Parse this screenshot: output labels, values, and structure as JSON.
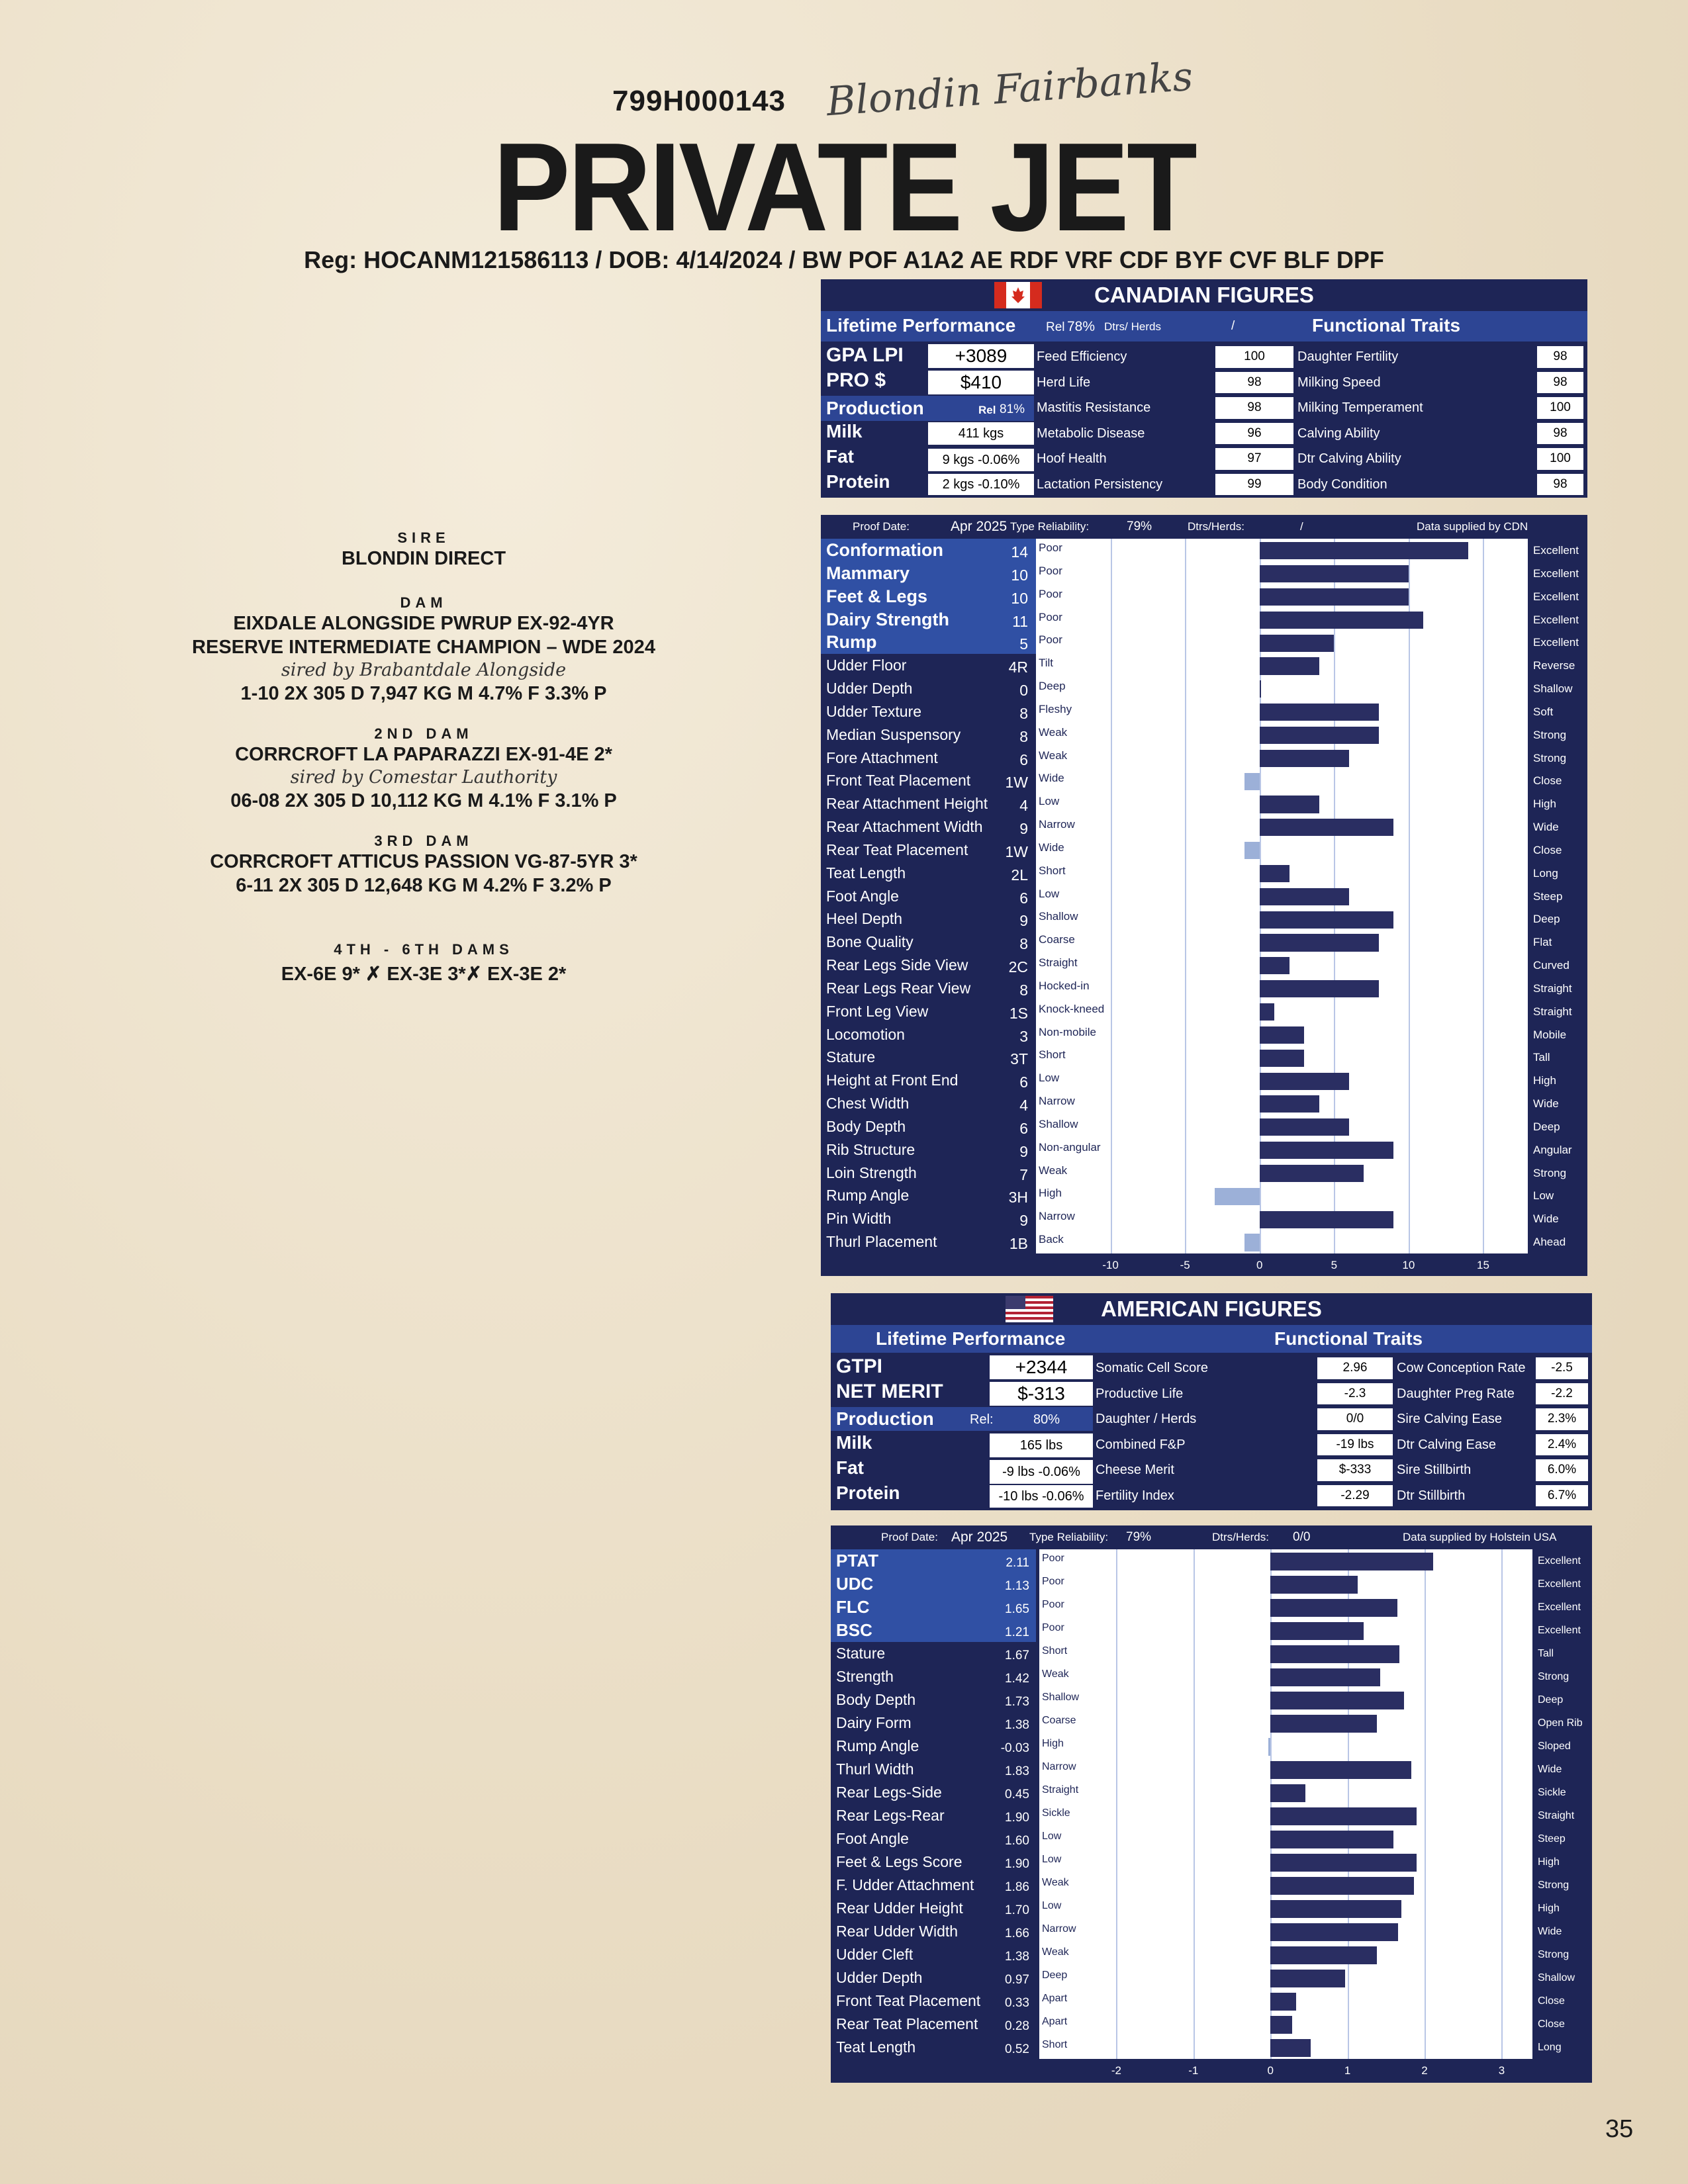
{
  "header": {
    "id": "799H000143",
    "signature": "Blondin Fairbanks",
    "title": "PRIVATE JET",
    "reg": "Reg: HOCANM121586113 /  DOB: 4/14/2024  / BW POF A1A2 AE RDF VRF CDF BYF CVF BLF DPF"
  },
  "pedigree": {
    "sire_label": "SIRE",
    "sire": "BLONDIN DIRECT",
    "dam_label": "DAM",
    "dam": "EIXDALE ALONGSIDE PWRUP EX-92-4YR",
    "dam_award": "RESERVE INTERMEDIATE CHAMPION – WDE 2024",
    "dam_sired": "sired by Brabantdale Alongside",
    "dam_record": "1-10 2X 305 D 7,947 KG M 4.7% F 3.3% P",
    "dam2_label": "2ND DAM",
    "dam2": "CORRCROFT LA PAPARAZZI EX-91-4E 2*",
    "dam2_sired": "sired by Comestar Lauthority",
    "dam2_record": "06-08 2X 305 D 10,112 KG M 4.1% F 3.1% P",
    "dam3_label": "3RD DAM",
    "dam3": "CORRCROFT ATTICUS PASSION VG-87-5YR 3*",
    "dam3_record": "6-11 2X 305 D 12,648 KG M 4.2% F 3.2% P",
    "dams46_label": "4TH - 6TH DAMS",
    "dams46": "EX-6E 9* ✗ EX-3E 3*✗ EX-3E 2*"
  },
  "canadian": {
    "title": "CANADIAN FIGURES",
    "lifetime": "Lifetime Performance",
    "rel_label": "Rel",
    "rel": "78%",
    "dtrs_label": "Dtrs/ Herds",
    "dtrs_sep": "/",
    "functional": "Functional Traits",
    "gpa_label": "GPA LPI",
    "gpa": "+3089",
    "pro_label": "PRO  $",
    "pro": "$410",
    "production": "Production",
    "prod_rel_label": "Rel",
    "prod_rel": "81%",
    "milk_label": "Milk",
    "milk": "411 kgs",
    "fat_label": "Fat",
    "fat": "9 kgs -0.06%",
    "protein_label": "Protein",
    "protein": "2 kgs -0.10%",
    "func_mid": [
      [
        "Feed Efficiency",
        "100"
      ],
      [
        "Herd Life",
        "98"
      ],
      [
        "Mastitis Resistance",
        "98"
      ],
      [
        "Metabolic Disease",
        "96"
      ],
      [
        "Hoof Health",
        "97"
      ],
      [
        "Lactation Persistency",
        "99"
      ]
    ],
    "func_right": [
      [
        "Daughter Fertility",
        "98"
      ],
      [
        "Milking Speed",
        "98"
      ],
      [
        "Milking Temperament",
        "100"
      ],
      [
        "Calving Ability",
        "98"
      ],
      [
        "Dtr Calving Ability",
        "100"
      ],
      [
        "Body Condition",
        "98"
      ]
    ],
    "proof_label": "Proof Date:",
    "proof_date": "Apr 2025",
    "type_rel_label": "Type Reliability:",
    "type_rel": "79%",
    "dtrs_herds_label": "Dtrs/Herds:",
    "dtrs_herds": "/",
    "supplied": "Data supplied by CDN",
    "axis": [
      "-10",
      "-5",
      "0",
      "5",
      "10",
      "15"
    ]
  },
  "canadian_type": {
    "xlim": [
      -15,
      18
    ],
    "traits": [
      {
        "name": "Conformation",
        "shown": "14",
        "v": 14,
        "lo": "Poor",
        "hi": "Excellent",
        "major": true
      },
      {
        "name": "Mammary",
        "shown": "10",
        "v": 10,
        "lo": "Poor",
        "hi": "Excellent",
        "major": true
      },
      {
        "name": "Feet & Legs",
        "shown": "10",
        "v": 10,
        "lo": "Poor",
        "hi": "Excellent",
        "major": true
      },
      {
        "name": "Dairy Strength",
        "shown": "11",
        "v": 11,
        "lo": "Poor",
        "hi": "Excellent",
        "major": true
      },
      {
        "name": "Rump",
        "shown": "5",
        "v": 5,
        "lo": "Poor",
        "hi": "Excellent",
        "major": true
      },
      {
        "name": "Udder Floor",
        "shown": "4R",
        "v": 4,
        "lo": "Tilt",
        "hi": "Reverse"
      },
      {
        "name": "Udder Depth",
        "shown": "0",
        "v": 0,
        "lo": "Deep",
        "hi": "Shallow"
      },
      {
        "name": "Udder Texture",
        "shown": "8",
        "v": 8,
        "lo": "Fleshy",
        "hi": "Soft"
      },
      {
        "name": "Median Suspensory",
        "shown": "8",
        "v": 8,
        "lo": "Weak",
        "hi": "Strong"
      },
      {
        "name": "Fore Attachment",
        "shown": "6",
        "v": 6,
        "lo": "Weak",
        "hi": "Strong"
      },
      {
        "name": "Front Teat Placement",
        "shown": "1W",
        "v": -1,
        "lo": "Wide",
        "hi": "Close"
      },
      {
        "name": "Rear Attachment Height",
        "shown": "4",
        "v": 4,
        "lo": "Low",
        "hi": "High"
      },
      {
        "name": "Rear Attachment Width",
        "shown": "9",
        "v": 9,
        "lo": "Narrow",
        "hi": "Wide"
      },
      {
        "name": "Rear Teat Placement",
        "shown": "1W",
        "v": -1,
        "lo": "Wide",
        "hi": "Close"
      },
      {
        "name": "Teat Length",
        "shown": "2L",
        "v": 2,
        "lo": "Short",
        "hi": "Long"
      },
      {
        "name": "Foot Angle",
        "shown": "6",
        "v": 6,
        "lo": "Low",
        "hi": "Steep"
      },
      {
        "name": "Heel Depth",
        "shown": "9",
        "v": 9,
        "lo": "Shallow",
        "hi": "Deep"
      },
      {
        "name": "Bone Quality",
        "shown": "8",
        "v": 8,
        "lo": "Coarse",
        "hi": "Flat"
      },
      {
        "name": "Rear Legs Side View",
        "shown": "2C",
        "v": 2,
        "lo": "Straight",
        "hi": "Curved"
      },
      {
        "name": "Rear Legs Rear View",
        "shown": "8",
        "v": 8,
        "lo": "Hocked-in",
        "hi": "Straight"
      },
      {
        "name": "Front Leg View",
        "shown": "1S",
        "v": 1,
        "lo": "Knock-kneed",
        "hi": "Straight"
      },
      {
        "name": "Locomotion",
        "shown": "3",
        "v": 3,
        "lo": "Non-mobile",
        "hi": "Mobile"
      },
      {
        "name": "Stature",
        "shown": "3T",
        "v": 3,
        "lo": "Short",
        "hi": "Tall"
      },
      {
        "name": "Height at Front End",
        "shown": "6",
        "v": 6,
        "lo": "Low",
        "hi": "High"
      },
      {
        "name": "Chest Width",
        "shown": "4",
        "v": 4,
        "lo": "Narrow",
        "hi": "Wide"
      },
      {
        "name": "Body Depth",
        "shown": "6",
        "v": 6,
        "lo": "Shallow",
        "hi": "Deep"
      },
      {
        "name": "Rib Structure",
        "shown": "9",
        "v": 9,
        "lo": "Non-angular",
        "hi": "Angular"
      },
      {
        "name": "Loin Strength",
        "shown": "7",
        "v": 7,
        "lo": "Weak",
        "hi": "Strong"
      },
      {
        "name": "Rump Angle",
        "shown": "3H",
        "v": -3,
        "lo": "High",
        "hi": "Low"
      },
      {
        "name": "Pin Width",
        "shown": "9",
        "v": 9,
        "lo": "Narrow",
        "hi": "Wide"
      },
      {
        "name": "Thurl Placement",
        "shown": "1B",
        "v": -1,
        "lo": "Back",
        "hi": "Ahead"
      }
    ]
  },
  "american": {
    "title": "AMERICAN FIGURES",
    "lifetime": "Lifetime Performance",
    "functional": "Functional Traits",
    "gtpi_label": "GTPI",
    "gtpi": "+2344",
    "nm_label": "NET MERIT",
    "nm": "$-313",
    "production": "Production",
    "rel_label": "Rel:",
    "rel": "80%",
    "milk_label": "Milk",
    "milk": "165 lbs",
    "fat_label": "Fat",
    "fat": "-9 lbs -0.06%",
    "protein_label": "Protein",
    "protein": "-10 lbs -0.06%",
    "func_mid": [
      [
        "Somatic Cell Score",
        "2.96"
      ],
      [
        "Productive Life",
        "-2.3"
      ],
      [
        "Daughter / Herds",
        "0/0"
      ],
      [
        "Combined F&P",
        "-19 lbs"
      ],
      [
        "Cheese Merit",
        "$-333"
      ],
      [
        "Fertility Index",
        "-2.29"
      ]
    ],
    "func_right": [
      [
        "Cow Conception Rate",
        "-2.5"
      ],
      [
        "Daughter Preg Rate",
        "-2.2"
      ],
      [
        "Sire Calving Ease",
        "2.3%"
      ],
      [
        "Dtr Calving Ease",
        "2.4%"
      ],
      [
        "Sire Stillbirth",
        "6.0%"
      ],
      [
        "Dtr Stillbirth",
        "6.7%"
      ]
    ],
    "proof_label": "Proof Date:",
    "proof_date": "Apr 2025",
    "type_rel_label": "Type Reliability:",
    "type_rel": "79%",
    "dtrs_herds_label": "Dtrs/Herds:",
    "dtrs_herds": "0/0",
    "supplied": "Data supplied by Holstein USA",
    "axis": [
      "-2",
      "-1",
      "0",
      "1",
      "2",
      "3"
    ]
  },
  "american_type": {
    "xlim": [
      -3,
      3.4
    ],
    "traits": [
      {
        "name": "PTAT",
        "shown": "2.11",
        "v": 2.11,
        "lo": "Poor",
        "hi": "Excellent",
        "major": true
      },
      {
        "name": "UDC",
        "shown": "1.13",
        "v": 1.13,
        "lo": "Poor",
        "hi": "Excellent",
        "major": true
      },
      {
        "name": "FLC",
        "shown": "1.65",
        "v": 1.65,
        "lo": "Poor",
        "hi": "Excellent",
        "major": true
      },
      {
        "name": "BSC",
        "shown": "1.21",
        "v": 1.21,
        "lo": "Poor",
        "hi": "Excellent",
        "major": true
      },
      {
        "name": "Stature",
        "shown": "1.67",
        "v": 1.67,
        "lo": "Short",
        "hi": "Tall"
      },
      {
        "name": "Strength",
        "shown": "1.42",
        "v": 1.42,
        "lo": "Weak",
        "hi": "Strong"
      },
      {
        "name": "Body Depth",
        "shown": "1.73",
        "v": 1.73,
        "lo": "Shallow",
        "hi": "Deep"
      },
      {
        "name": "Dairy Form",
        "shown": "1.38",
        "v": 1.38,
        "lo": "Coarse",
        "hi": "Open Rib"
      },
      {
        "name": "Rump Angle",
        "shown": "-0.03",
        "v": -0.03,
        "lo": "High",
        "hi": "Sloped"
      },
      {
        "name": "Thurl Width",
        "shown": "1.83",
        "v": 1.83,
        "lo": "Narrow",
        "hi": "Wide"
      },
      {
        "name": "Rear Legs-Side",
        "shown": "0.45",
        "v": 0.45,
        "lo": "Straight",
        "hi": "Sickle"
      },
      {
        "name": "Rear Legs-Rear",
        "shown": "1.90",
        "v": 1.9,
        "lo": "Sickle",
        "hi": "Straight"
      },
      {
        "name": "Foot Angle",
        "shown": "1.60",
        "v": 1.6,
        "lo": "Low",
        "hi": "Steep"
      },
      {
        "name": "Feet & Legs Score",
        "shown": "1.90",
        "v": 1.9,
        "lo": "Low",
        "hi": "High"
      },
      {
        "name": "F. Udder Attachment",
        "shown": "1.86",
        "v": 1.86,
        "lo": "Weak",
        "hi": "Strong"
      },
      {
        "name": "Rear Udder Height",
        "shown": "1.70",
        "v": 1.7,
        "lo": "Low",
        "hi": "High"
      },
      {
        "name": "Rear Udder Width",
        "shown": "1.66",
        "v": 1.66,
        "lo": "Narrow",
        "hi": "Wide"
      },
      {
        "name": "Udder Cleft",
        "shown": "1.38",
        "v": 1.38,
        "lo": "Weak",
        "hi": "Strong"
      },
      {
        "name": "Udder Depth",
        "shown": "0.97",
        "v": 0.97,
        "lo": "Deep",
        "hi": "Shallow"
      },
      {
        "name": "Front Teat Placement",
        "shown": "0.33",
        "v": 0.33,
        "lo": "Apart",
        "hi": "Close"
      },
      {
        "name": "Rear Teat Placement",
        "shown": "0.28",
        "v": 0.28,
        "lo": "Apart",
        "hi": "Close"
      },
      {
        "name": "Teat Length",
        "shown": "0.52",
        "v": 0.52,
        "lo": "Short",
        "hi": "Long"
      }
    ]
  },
  "page_number": "35"
}
